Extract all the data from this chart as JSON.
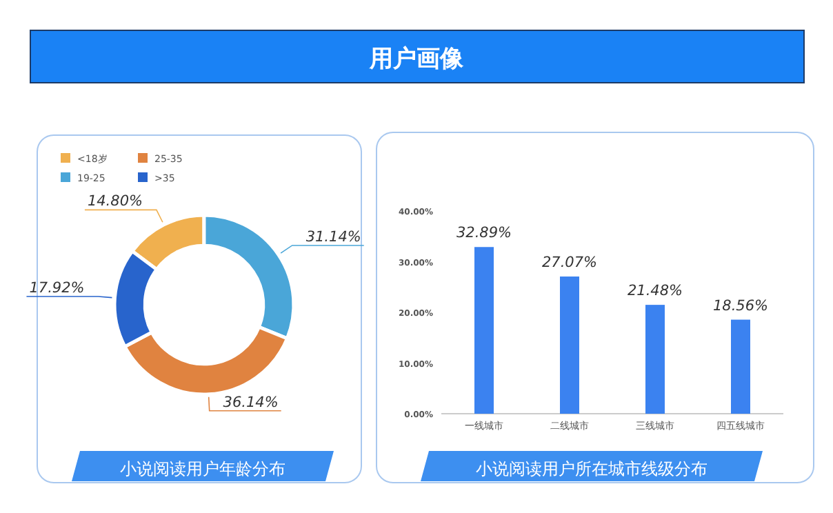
{
  "chart_data": [
    {
      "type": "other",
      "title": "用户画像"
    },
    {
      "type": "donut",
      "title": "小说阅读用户年龄分布",
      "categories": [
        "<18岁",
        "19-25",
        "25-35",
        ">35"
      ],
      "values": [
        14.8,
        31.14,
        36.14,
        17.92
      ],
      "colors": [
        "#f0b04f",
        "#4aa6d8",
        "#e08340",
        "#2864cc"
      ],
      "value_labels": [
        "14.80%",
        "31.14%",
        "36.14%",
        "17.92%"
      ],
      "legend": "top left"
    },
    {
      "type": "bar",
      "title": "小说阅读用户所在城市线级分布",
      "categories": [
        "一线城市",
        "二线城市",
        "三线城市",
        "四五线城市"
      ],
      "values": [
        32.89,
        27.07,
        21.48,
        18.56
      ],
      "color": "#3b82f0",
      "value_labels": [
        "32.89%",
        "27.07%",
        "21.48%",
        "18.56%"
      ],
      "ylim": [
        0,
        40
      ],
      "yticks": [
        {
          "value": 0,
          "label": "0.00%"
        },
        {
          "value": 10,
          "label": "10.00%"
        },
        {
          "value": 20,
          "label": "20.00%"
        },
        {
          "value": 30,
          "label": "30.00%"
        },
        {
          "value": 40,
          "label": "40.00%"
        }
      ],
      "grid": false
    }
  ]
}
